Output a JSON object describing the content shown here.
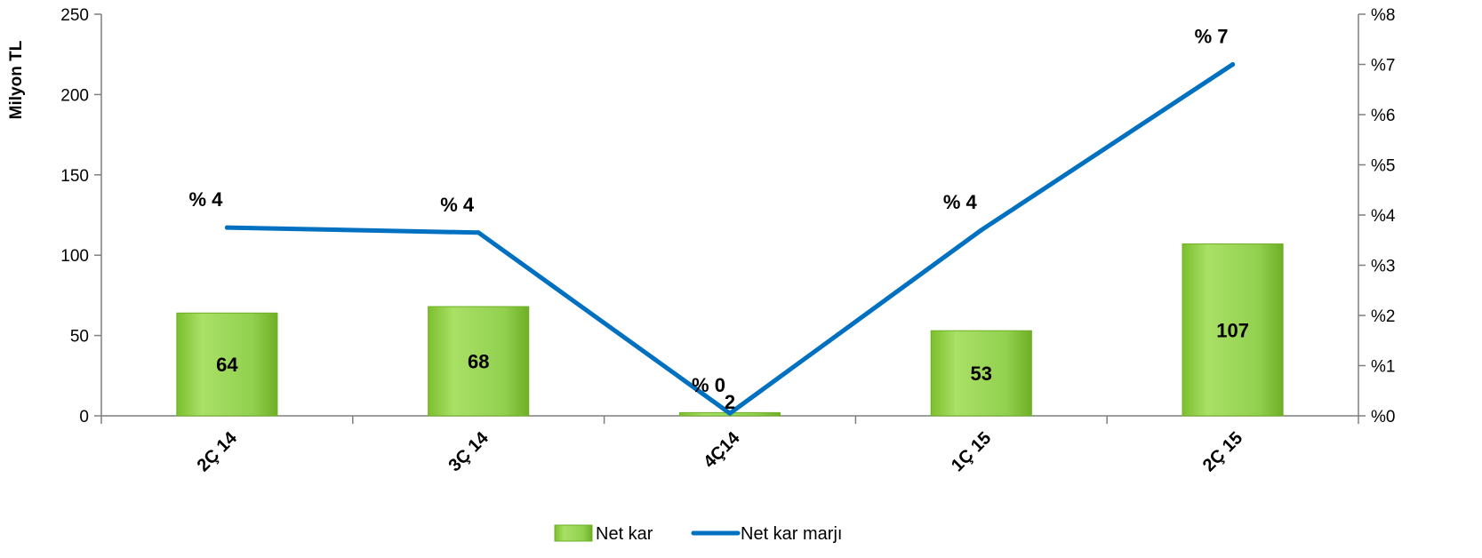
{
  "chart_data": {
    "type": "bar",
    "categories": [
      "2Ç 14",
      "3Ç 14",
      "4Ç14",
      "1Ç 15",
      "2Ç 15"
    ],
    "series": [
      {
        "name": "Net kar",
        "type": "bar",
        "axis": "left",
        "values": [
          64,
          68,
          2,
          53,
          107
        ],
        "labels": [
          "64",
          "68",
          "2",
          "53",
          "107"
        ],
        "color": "#92D050"
      },
      {
        "name": "Net kar marjı",
        "type": "line",
        "axis": "right",
        "values": [
          3.75,
          3.65,
          0.05,
          3.7,
          7.0
        ],
        "labels": [
          "% 4",
          "% 4",
          "% 0",
          "% 4",
          "% 7"
        ],
        "color": "#0070C0"
      }
    ],
    "ylabel": "Milyon TL",
    "ylim": [
      0,
      250
    ],
    "yticks": [
      "0",
      "50",
      "100",
      "150",
      "200",
      "250"
    ],
    "y2lim": [
      0,
      8
    ],
    "y2ticks": [
      "%0",
      "%1",
      "%2",
      "%3",
      "%4",
      "%5",
      "%6",
      "%7",
      "%8"
    ],
    "grid": false,
    "legend_position": "bottom"
  }
}
